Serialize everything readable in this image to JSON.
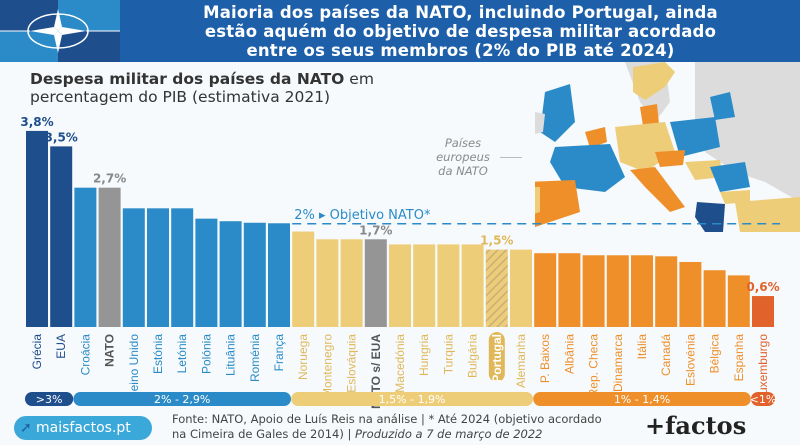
{
  "header": {
    "title_line1": "Maioria dos países da NATO, incluindo Portugal, ainda",
    "title_line2": "estão aquém do objetivo de despesa militar acordado",
    "title_line3": "entre os seus membros (2% do PIB até 2024)",
    "logo": "nato-compass-icon"
  },
  "subtitle": {
    "bold": "Despesa militar dos países da NATO",
    "rest1": " em",
    "line2": "percentagem do PIB (estimativa 2021)"
  },
  "map": {
    "label_line1": "Países",
    "label_line2": "europeus",
    "label_line3": "da NATO"
  },
  "footer": {
    "site": "maisfactos.pt",
    "source_line1": "Fonte: NATO, Apoio de Luís Reis na análise | * Até 2024 (objetivo acordado",
    "source_line2a": "na Cimeira de Gales de 2014) | ",
    "source_line2b": "Produzido a 7 de março de 2022",
    "brand": "+factos"
  },
  "colors": {
    "dark_blue": "#1f4e8c",
    "blue": "#2b8bc8",
    "gray": "#959595",
    "yellow": "#eecd78",
    "orange": "#ef8f2a",
    "red": "#e2622b"
  },
  "chart_data": {
    "type": "bar",
    "title": "Despesa militar dos países da NATO em percentagem do PIB (estimativa 2021)",
    "xlabel": "",
    "ylabel": "% do PIB",
    "ylim": [
      0,
      3.8
    ],
    "grid": false,
    "target": {
      "value": 2.0,
      "label": "2% ▸ Objetivo NATO*"
    },
    "categories": [
      "Grécia",
      "EUA",
      "Croácia",
      "NATO",
      "Reino Unido",
      "Estónia",
      "Letónia",
      "Polónia",
      "Lituânia",
      "Roménia",
      "França",
      "Noruega",
      "Montenegro",
      "Eslováquia",
      "NATO s/ EUA",
      "Macedónia",
      "Hungria",
      "Turquia",
      "Bulgária",
      "Portugal",
      "Alemanha",
      "P. Baixos",
      "Albânia",
      "Rep. Checa",
      "Dinamarca",
      "Itália",
      "Canadá",
      "Eslovénia",
      "Bélgica",
      "Espanha",
      "Luxemburgo"
    ],
    "values": [
      3.8,
      3.5,
      2.7,
      2.7,
      2.3,
      2.3,
      2.3,
      2.1,
      2.05,
      2.02,
      2.01,
      1.85,
      1.7,
      1.7,
      1.7,
      1.6,
      1.6,
      1.6,
      1.6,
      1.5,
      1.5,
      1.43,
      1.43,
      1.39,
      1.39,
      1.39,
      1.37,
      1.26,
      1.1,
      1.0,
      0.6
    ],
    "groups": [
      "gt3",
      "gt3",
      "2to29",
      "nato",
      "2to29",
      "2to29",
      "2to29",
      "2to29",
      "2to29",
      "2to29",
      "2to29",
      "15to19",
      "15to19",
      "15to19",
      "nato",
      "15to19",
      "15to19",
      "15to19",
      "15to19",
      "portugal",
      "15to19",
      "1to14",
      "1to14",
      "1to14",
      "1to14",
      "1to14",
      "1to14",
      "1to14",
      "1to14",
      "1to14",
      "lt1"
    ],
    "data_labels": [
      {
        "index": 0,
        "text": "3,8%"
      },
      {
        "index": 1,
        "text": "3,5%"
      },
      {
        "index": 3,
        "text": "2,7%"
      },
      {
        "index": 14,
        "text": "1,7%"
      },
      {
        "index": 19,
        "text": "1,5%"
      },
      {
        "index": 30,
        "text": "0,6%"
      }
    ],
    "legend": [
      {
        "label": ">3%",
        "from": 0,
        "to": 1,
        "color": "#1f4e8c"
      },
      {
        "label": "2% - 2,9%",
        "from": 2,
        "to": 10,
        "color": "#2b8bc8"
      },
      {
        "label": "1,5% - 1,9%",
        "from": 11,
        "to": 20,
        "color": "#eecd78"
      },
      {
        "label": "1% - 1,4%",
        "from": 21,
        "to": 29,
        "color": "#ef8f2a"
      },
      {
        "label": "<1%",
        "from": 30,
        "to": 30,
        "color": "#e2622b"
      }
    ],
    "legend_position": "bottom"
  }
}
